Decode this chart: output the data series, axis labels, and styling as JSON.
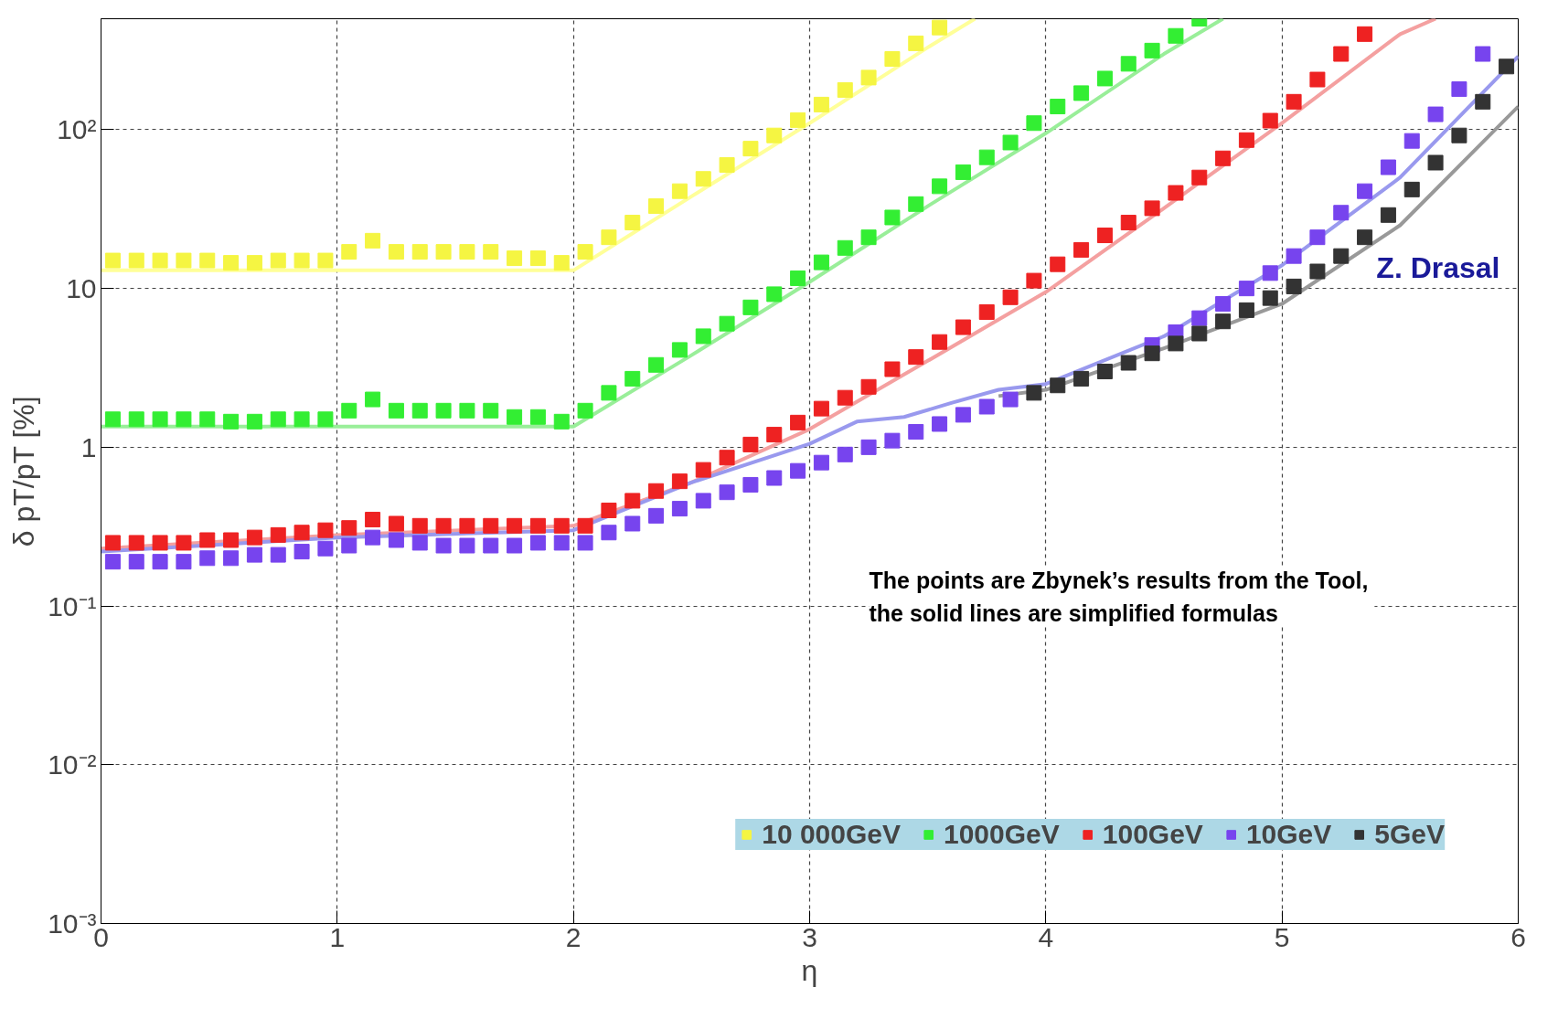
{
  "chart_data": {
    "type": "line",
    "xlabel": "η",
    "ylabel": "δ pT/pT [%]",
    "log": "y",
    "xlim": [
      0,
      6
    ],
    "ylim": [
      0.001,
      500
    ],
    "xticks": [
      0,
      1,
      2,
      3,
      4,
      5,
      6
    ],
    "yticks": [
      {
        "value": 0.001,
        "label": "10⁻³"
      },
      {
        "value": 0.01,
        "label": "10⁻²"
      },
      {
        "value": 0.1,
        "label": "10⁻¹"
      },
      1,
      10,
      {
        "value": 100,
        "label": "10²"
      }
    ],
    "grid": true,
    "legend": "bottom right",
    "marker": "square",
    "line_style": "solid",
    "annotations": [
      "Z. Drasal",
      "The points are Zbynek’s  results from the Tool, the solid lines are simplified formulas"
    ],
    "series": [
      {
        "marker": "none",
        "color": "#ffff99",
        "x": [
          0,
          2,
          2.5,
          3,
          3.5,
          3.7
        ],
        "values": [
          13,
          13,
          38,
          110,
          330,
          500
        ]
      },
      {
        "marker": "none",
        "color": "#99ee99",
        "x": [
          0,
          2,
          2.5,
          3,
          3.5,
          4,
          4.5,
          4.75
        ],
        "values": [
          1.35,
          1.35,
          3.8,
          11,
          33,
          95,
          300,
          500
        ]
      },
      {
        "marker": "none",
        "color": "#f4a0a0",
        "x": [
          0,
          1,
          2,
          2.5,
          3,
          3.5,
          4,
          4.5,
          5,
          5.5,
          5.65
        ],
        "values": [
          0.23,
          0.28,
          0.32,
          0.6,
          1.3,
          3.5,
          9.5,
          32,
          110,
          400,
          500
        ]
      },
      {
        "marker": "none",
        "color": "#9999ee",
        "x": [
          0,
          1,
          2,
          2.5,
          3,
          3.2,
          3.4,
          3.6,
          3.8,
          4,
          4.5,
          5,
          5.5,
          6
        ],
        "values": [
          0.22,
          0.27,
          0.3,
          0.6,
          1.05,
          1.45,
          1.55,
          1.9,
          2.3,
          2.5,
          5,
          14,
          50,
          290
        ]
      },
      {
        "marker": "none",
        "color": "#999999",
        "x": [
          3.8,
          4,
          4.5,
          5,
          5.5,
          6
        ],
        "values": [
          2.1,
          2.3,
          4.2,
          8,
          25,
          140
        ]
      },
      {
        "type": "scatter",
        "name": "10 000GeV",
        "color": "#f5f542",
        "x": [
          0.05,
          0.15,
          0.25,
          0.35,
          0.45,
          0.55,
          0.65,
          0.75,
          0.85,
          0.95,
          1.05,
          1.15,
          1.25,
          1.35,
          1.45,
          1.55,
          1.65,
          1.75,
          1.85,
          1.95,
          2.05,
          2.15,
          2.25,
          2.35,
          2.45,
          2.55,
          2.65,
          2.75,
          2.85,
          2.95,
          3.05,
          3.15,
          3.25,
          3.35,
          3.45,
          3.55
        ],
        "values": [
          15,
          15,
          15,
          15,
          15,
          14.5,
          14.5,
          15,
          15,
          15,
          17,
          20,
          17,
          17,
          17,
          17,
          17,
          15.5,
          15.5,
          14.5,
          17,
          21,
          26,
          33,
          41,
          49,
          60,
          76,
          92,
          115,
          144,
          178,
          213,
          279,
          350,
          440
        ]
      },
      {
        "type": "scatter",
        "name": "1000GeV",
        "color": "#33ee33",
        "x": [
          0.05,
          0.15,
          0.25,
          0.35,
          0.45,
          0.55,
          0.65,
          0.75,
          0.85,
          0.95,
          1.05,
          1.15,
          1.25,
          1.35,
          1.45,
          1.55,
          1.65,
          1.75,
          1.85,
          1.95,
          2.05,
          2.15,
          2.25,
          2.35,
          2.45,
          2.55,
          2.65,
          2.75,
          2.85,
          2.95,
          3.05,
          3.15,
          3.25,
          3.35,
          3.45,
          3.55,
          3.65,
          3.75,
          3.85,
          3.95,
          4.05,
          4.15,
          4.25,
          4.35,
          4.45,
          4.55,
          4.65
        ],
        "values": [
          1.5,
          1.5,
          1.5,
          1.5,
          1.5,
          1.45,
          1.45,
          1.5,
          1.5,
          1.5,
          1.7,
          2,
          1.7,
          1.7,
          1.7,
          1.7,
          1.7,
          1.55,
          1.55,
          1.45,
          1.7,
          2.2,
          2.7,
          3.3,
          4.1,
          5,
          6,
          7.6,
          9.2,
          11.6,
          14.6,
          18,
          21,
          28,
          34,
          44,
          54,
          67,
          83,
          110,
          140,
          170,
          210,
          260,
          315,
          390,
          500
        ]
      },
      {
        "type": "scatter",
        "name": "100GeV",
        "color": "#ee2222",
        "x": [
          0.05,
          0.15,
          0.25,
          0.35,
          0.45,
          0.55,
          0.65,
          0.75,
          0.85,
          0.95,
          1.05,
          1.15,
          1.25,
          1.35,
          1.45,
          1.55,
          1.65,
          1.75,
          1.85,
          1.95,
          2.05,
          2.15,
          2.25,
          2.35,
          2.45,
          2.55,
          2.65,
          2.75,
          2.85,
          2.95,
          3.05,
          3.15,
          3.25,
          3.35,
          3.45,
          3.55,
          3.65,
          3.75,
          3.85,
          3.95,
          4.05,
          4.15,
          4.25,
          4.35,
          4.45,
          4.55,
          4.65,
          4.75,
          4.85,
          4.95,
          5.05,
          5.15,
          5.25,
          5.35
        ],
        "values": [
          0.25,
          0.25,
          0.25,
          0.25,
          0.26,
          0.26,
          0.27,
          0.28,
          0.29,
          0.3,
          0.31,
          0.35,
          0.33,
          0.32,
          0.32,
          0.32,
          0.32,
          0.32,
          0.32,
          0.32,
          0.32,
          0.4,
          0.46,
          0.53,
          0.61,
          0.72,
          0.86,
          1.04,
          1.2,
          1.43,
          1.75,
          2.05,
          2.4,
          3.1,
          3.7,
          4.6,
          5.7,
          7.1,
          8.8,
          11.2,
          14.2,
          17.5,
          21.6,
          26,
          32,
          40,
          50,
          66,
          86,
          114,
          150,
          207,
          300,
          400
        ]
      },
      {
        "type": "scatter",
        "name": "10GeV",
        "color": "#7744ee",
        "x": [
          0.05,
          0.15,
          0.25,
          0.35,
          0.45,
          0.55,
          0.65,
          0.75,
          0.85,
          0.95,
          1.05,
          1.15,
          1.25,
          1.35,
          1.45,
          1.55,
          1.65,
          1.75,
          1.85,
          1.95,
          2.05,
          2.15,
          2.25,
          2.35,
          2.45,
          2.55,
          2.65,
          2.75,
          2.85,
          2.95,
          3.05,
          3.15,
          3.25,
          3.35,
          3.45,
          3.55,
          3.65,
          3.75,
          3.85,
          3.95,
          4.05,
          4.15,
          4.25,
          4.35,
          4.45,
          4.55,
          4.65,
          4.75,
          4.85,
          4.95,
          5.05,
          5.15,
          5.25,
          5.35,
          5.45,
          5.55,
          5.65,
          5.75,
          5.85
        ],
        "values": [
          0.19,
          0.19,
          0.19,
          0.19,
          0.2,
          0.2,
          0.21,
          0.21,
          0.22,
          0.23,
          0.24,
          0.27,
          0.26,
          0.25,
          0.24,
          0.24,
          0.24,
          0.24,
          0.25,
          0.25,
          0.25,
          0.29,
          0.33,
          0.37,
          0.41,
          0.46,
          0.52,
          0.58,
          0.64,
          0.71,
          0.8,
          0.9,
          1,
          1.1,
          1.25,
          1.4,
          1.6,
          1.8,
          2,
          null,
          null,
          null,
          null,
          null,
          4.4,
          5.3,
          6.5,
          8,
          10,
          12.5,
          16,
          21,
          30,
          41,
          58,
          85,
          125,
          180,
          300
        ]
      },
      {
        "type": "scatter",
        "name": "5GeV",
        "color": "#333333",
        "x": [
          3.95,
          4.05,
          4.15,
          4.25,
          4.35,
          4.45,
          4.55,
          4.65,
          4.75,
          4.85,
          4.95,
          5.05,
          5.15,
          5.25,
          5.35,
          5.45,
          5.55,
          5.65,
          5.75,
          5.85,
          5.95
        ],
        "values": [
          2.2,
          2.45,
          2.7,
          3,
          3.4,
          3.9,
          4.5,
          5.2,
          6.2,
          7.3,
          8.7,
          10.3,
          12.8,
          16,
          21,
          29,
          42,
          62,
          92,
          150,
          250
        ]
      }
    ]
  }
}
